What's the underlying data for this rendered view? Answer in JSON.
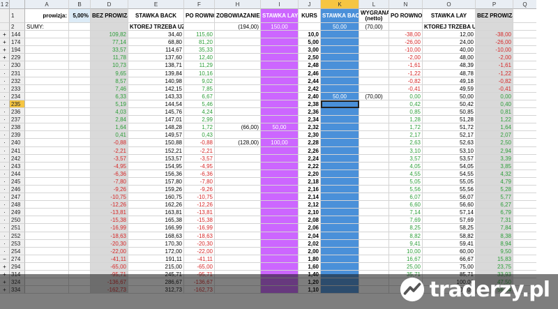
{
  "columns": [
    "A",
    "B",
    "D",
    "E",
    "F",
    "H",
    "I",
    "J",
    "K",
    "L",
    "N",
    "O",
    "P",
    "Q"
  ],
  "outline_levels": [
    "1",
    "2"
  ],
  "header": {
    "prowizja_label": "prowizja:",
    "prowizja_value": "5,00%",
    "bez_prowizji": "BEZ PROWIZJI",
    "stawka_back": "STAWKA BACK",
    "po_rowno": "PO ROWNO",
    "zobowiazanie": "ZOBOWIAZANIE",
    "stawka_lay": "STAWKA LAY",
    "kurs": "KURS",
    "stawka_back_k": "STAWKA BACK",
    "wygrana": "WYGRANA (netto)",
    "po_rowno_n": "PO ROWNO",
    "stawka_lay_o": "STAWKA LAY",
    "bez_prowizji_p": "BEZ PROWIZJI"
  },
  "sumy": {
    "label": "SUMY:",
    "e": "KTOREJ TRZEBA UZYC",
    "h": "(194,00)",
    "i": "150,00",
    "k": "50,00",
    "l": "(70,00)",
    "o": "KTOREJ TRZEBA UZYC"
  },
  "rows": [
    {
      "rn": "144",
      "g": "+",
      "d": "109,82",
      "e": "34,40",
      "f": "115,60",
      "h": "",
      "i": "",
      "j": "10,0",
      "k": "",
      "l": "",
      "n": "-38,00",
      "o": "12,00",
      "p": "-38,00"
    },
    {
      "rn": "174",
      "g": "+",
      "d": "77,14",
      "e": "68,80",
      "f": "81,20",
      "h": "",
      "i": "",
      "j": "5,00",
      "k": "",
      "l": "",
      "n": "-26,00",
      "o": "24,00",
      "p": "-26,00"
    },
    {
      "rn": "194",
      "g": "+",
      "d": "33,57",
      "e": "114,67",
      "f": "35,33",
      "h": "",
      "i": "",
      "j": "3,00",
      "k": "",
      "l": "",
      "n": "-10,00",
      "o": "40,00",
      "p": "-10,00"
    },
    {
      "rn": "229",
      "g": "+",
      "d": "11,78",
      "e": "137,60",
      "f": "12,40",
      "h": "",
      "i": "",
      "j": "2,50",
      "k": "",
      "l": "",
      "n": "-2,00",
      "o": "48,00",
      "p": "-2,00"
    },
    {
      "rn": "230",
      "g": "·",
      "d": "10,73",
      "e": "138,71",
      "f": "11,29",
      "h": "",
      "i": "",
      "j": "2,48",
      "k": "",
      "l": "",
      "n": "-1,61",
      "o": "48,39",
      "p": "-1,61"
    },
    {
      "rn": "231",
      "g": "·",
      "d": "9,65",
      "e": "139,84",
      "f": "10,16",
      "h": "",
      "i": "",
      "j": "2,46",
      "k": "",
      "l": "",
      "n": "-1,22",
      "o": "48,78",
      "p": "-1,22"
    },
    {
      "rn": "232",
      "g": "·",
      "d": "8,57",
      "e": "140,98",
      "f": "9,02",
      "h": "",
      "i": "",
      "j": "2,44",
      "k": "",
      "l": "",
      "n": "-0,82",
      "o": "49,18",
      "p": "-0,82"
    },
    {
      "rn": "233",
      "g": "·",
      "d": "7,46",
      "e": "142,15",
      "f": "7,85",
      "h": "",
      "i": "",
      "j": "2,42",
      "k": "",
      "l": "",
      "n": "-0,41",
      "o": "49,59",
      "p": "-0,41"
    },
    {
      "rn": "234",
      "g": "·",
      "d": "6,33",
      "e": "143,33",
      "f": "6,67",
      "h": "",
      "i": "",
      "j": "2,40",
      "k": "50,00",
      "l": "(70,00)",
      "n": "0,00",
      "o": "50,00",
      "p": "0,00"
    },
    {
      "rn": "235",
      "g": "·",
      "d": "5,19",
      "e": "144,54",
      "f": "5,46",
      "h": "",
      "i": "",
      "j": "2,38",
      "k": "",
      "l": "",
      "n": "0,42",
      "o": "50,42",
      "p": "0,40",
      "sel": true
    },
    {
      "rn": "236",
      "g": "·",
      "d": "4,03",
      "e": "145,76",
      "f": "4,24",
      "h": "",
      "i": "",
      "j": "2,36",
      "k": "",
      "l": "",
      "n": "0,85",
      "o": "50,85",
      "p": "0,81"
    },
    {
      "rn": "237",
      "g": "·",
      "d": "2,84",
      "e": "147,01",
      "f": "2,99",
      "h": "",
      "i": "",
      "j": "2,34",
      "k": "",
      "l": "",
      "n": "1,28",
      "o": "51,28",
      "p": "1,22"
    },
    {
      "rn": "238",
      "g": "·",
      "d": "1,64",
      "e": "148,28",
      "f": "1,72",
      "h": "(66,00)",
      "i": "50,00",
      "j": "2,32",
      "k": "",
      "l": "",
      "n": "1,72",
      "o": "51,72",
      "p": "1,64"
    },
    {
      "rn": "239",
      "g": "·",
      "d": "0,41",
      "e": "149,57",
      "f": "0,43",
      "h": "",
      "i": "",
      "j": "2,30",
      "k": "",
      "l": "",
      "n": "2,17",
      "o": "52,17",
      "p": "2,07"
    },
    {
      "rn": "240",
      "g": "·",
      "d": "-0,88",
      "e": "150,88",
      "f": "-0,88",
      "h": "(128,00)",
      "i": "100,00",
      "j": "2,28",
      "k": "",
      "l": "",
      "n": "2,63",
      "o": "52,63",
      "p": "2,50"
    },
    {
      "rn": "241",
      "g": "·",
      "d": "-2,21",
      "e": "152,21",
      "f": "-2,21",
      "h": "",
      "i": "",
      "j": "2,26",
      "k": "",
      "l": "",
      "n": "3,10",
      "o": "53,10",
      "p": "2,94"
    },
    {
      "rn": "242",
      "g": "·",
      "d": "-3,57",
      "e": "153,57",
      "f": "-3,57",
      "h": "",
      "i": "",
      "j": "2,24",
      "k": "",
      "l": "",
      "n": "3,57",
      "o": "53,57",
      "p": "3,39"
    },
    {
      "rn": "243",
      "g": "·",
      "d": "-4,95",
      "e": "154,95",
      "f": "-4,95",
      "h": "",
      "i": "",
      "j": "2,22",
      "k": "",
      "l": "",
      "n": "4,05",
      "o": "54,05",
      "p": "3,85"
    },
    {
      "rn": "244",
      "g": "·",
      "d": "-6,36",
      "e": "156,36",
      "f": "-6,36",
      "h": "",
      "i": "",
      "j": "2,20",
      "k": "",
      "l": "",
      "n": "4,55",
      "o": "54,55",
      "p": "4,32"
    },
    {
      "rn": "245",
      "g": "·",
      "d": "-7,80",
      "e": "157,80",
      "f": "-7,80",
      "h": "",
      "i": "",
      "j": "2,18",
      "k": "",
      "l": "",
      "n": "5,05",
      "o": "55,05",
      "p": "4,79"
    },
    {
      "rn": "246",
      "g": "·",
      "d": "-9,26",
      "e": "159,26",
      "f": "-9,26",
      "h": "",
      "i": "",
      "j": "2,16",
      "k": "",
      "l": "",
      "n": "5,56",
      "o": "55,56",
      "p": "5,28"
    },
    {
      "rn": "247",
      "g": "·",
      "d": "-10,75",
      "e": "160,75",
      "f": "-10,75",
      "h": "",
      "i": "",
      "j": "2,14",
      "k": "",
      "l": "",
      "n": "6,07",
      "o": "56,07",
      "p": "5,77"
    },
    {
      "rn": "248",
      "g": "·",
      "d": "-12,26",
      "e": "162,26",
      "f": "-12,26",
      "h": "",
      "i": "",
      "j": "2,12",
      "k": "",
      "l": "",
      "n": "6,60",
      "o": "56,60",
      "p": "6,27"
    },
    {
      "rn": "249",
      "g": "·",
      "d": "-13,81",
      "e": "163,81",
      "f": "-13,81",
      "h": "",
      "i": "",
      "j": "2,10",
      "k": "",
      "l": "",
      "n": "7,14",
      "o": "57,14",
      "p": "6,79"
    },
    {
      "rn": "250",
      "g": "·",
      "d": "-15,38",
      "e": "165,38",
      "f": "-15,38",
      "h": "",
      "i": "",
      "j": "2,08",
      "k": "",
      "l": "",
      "n": "7,69",
      "o": "57,69",
      "p": "7,31"
    },
    {
      "rn": "251",
      "g": "·",
      "d": "-16,99",
      "e": "166,99",
      "f": "-16,99",
      "h": "",
      "i": "",
      "j": "2,06",
      "k": "",
      "l": "",
      "n": "8,25",
      "o": "58,25",
      "p": "7,84"
    },
    {
      "rn": "252",
      "g": "·",
      "d": "-18,63",
      "e": "168,63",
      "f": "-18,63",
      "h": "",
      "i": "",
      "j": "2,04",
      "k": "",
      "l": "",
      "n": "8,82",
      "o": "58,82",
      "p": "8,38"
    },
    {
      "rn": "253",
      "g": "·",
      "d": "-20,30",
      "e": "170,30",
      "f": "-20,30",
      "h": "",
      "i": "",
      "j": "2,02",
      "k": "",
      "l": "",
      "n": "9,41",
      "o": "59,41",
      "p": "8,94"
    },
    {
      "rn": "254",
      "g": "·",
      "d": "-22,00",
      "e": "172,00",
      "f": "-22,00",
      "h": "",
      "i": "",
      "j": "2,00",
      "k": "",
      "l": "",
      "n": "10,00",
      "o": "60,00",
      "p": "9,50"
    },
    {
      "rn": "274",
      "g": "−",
      "d": "-41,11",
      "e": "191,11",
      "f": "-41,11",
      "h": "",
      "i": "",
      "j": "1,80",
      "k": "",
      "l": "",
      "n": "16,67",
      "o": "66,67",
      "p": "15,83"
    },
    {
      "rn": "294",
      "g": "+",
      "d": "-65,00",
      "e": "215,00",
      "f": "-65,00",
      "h": "",
      "i": "",
      "j": "1,60",
      "k": "",
      "l": "",
      "n": "25,00",
      "o": "75,00",
      "p": "23,75"
    },
    {
      "rn": "314",
      "g": "+",
      "d": "-95,71",
      "e": "245,71",
      "f": "-95,71",
      "h": "",
      "i": "",
      "j": "1,40",
      "k": "",
      "l": "",
      "n": "35,71",
      "o": "85,71",
      "p": "33,93"
    },
    {
      "rn": "324",
      "g": "+",
      "d": "-136,67",
      "e": "286,67",
      "f": "-136,67",
      "h": "",
      "i": "",
      "j": "1,20",
      "k": "",
      "l": "",
      "n": "50,00",
      "o": "100,00",
      "p": "47,50"
    },
    {
      "rn": "334",
      "g": "+",
      "d": "-162,73",
      "e": "312,73",
      "f": "-162,73",
      "h": "",
      "i": "",
      "j": "1,10",
      "k": "",
      "l": "",
      "n": "59,09",
      "o": "109,09",
      "p": "56,14"
    }
  ],
  "watermark": "traderzy.pl",
  "colors": {
    "gray": "#d9d9d9",
    "purple": "#cc66ff",
    "blue": "#4a90d9",
    "positive": "#2e9e3a",
    "negative": "#d62828",
    "selected_row": "#f5c542"
  }
}
